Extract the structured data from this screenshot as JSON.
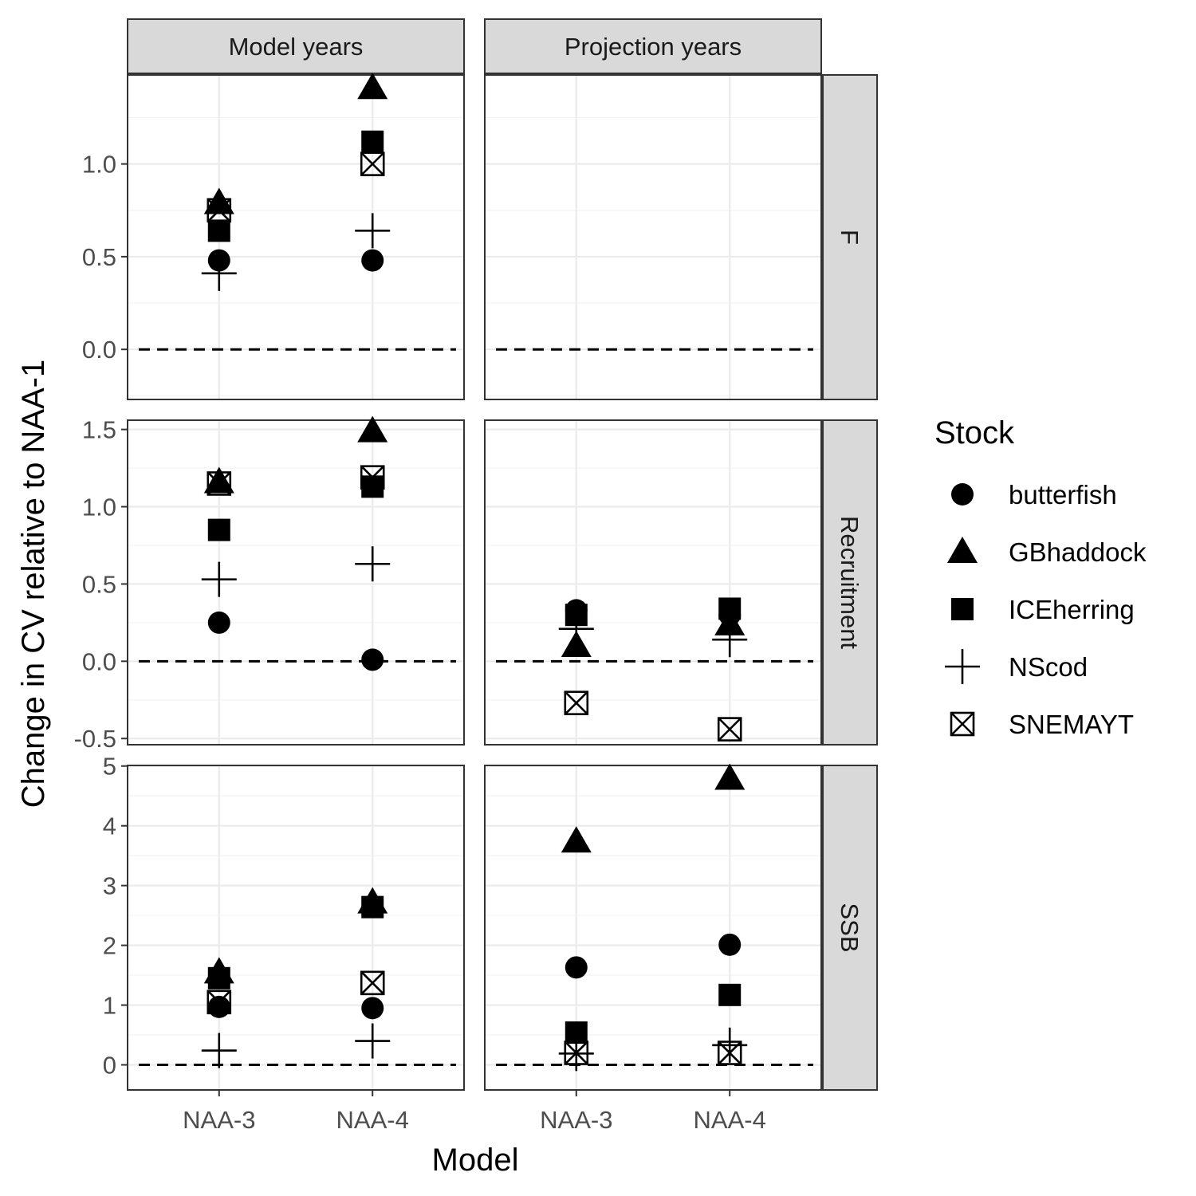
{
  "chart_data": {
    "type": "scatter",
    "facet_columns": [
      "Model years",
      "Projection years"
    ],
    "facet_rows": [
      "F",
      "Recruitment",
      "SSB"
    ],
    "xlabel": "Model",
    "ylabel": "Change in CV relative to NAA-1",
    "categories": [
      "NAA-3",
      "NAA-4"
    ],
    "reference_line": {
      "y": 0,
      "style": "dashed"
    },
    "grid": true,
    "legend": {
      "title": "Stock",
      "position": "right",
      "entries": [
        {
          "name": "butterfish",
          "shape": "circle"
        },
        {
          "name": "GBhaddock",
          "shape": "triangle"
        },
        {
          "name": "ICEherring",
          "shape": "square"
        },
        {
          "name": "NScod",
          "shape": "plus"
        },
        {
          "name": "SNEMAYT",
          "shape": "boxed-x"
        }
      ]
    },
    "rows": [
      {
        "name": "F",
        "ylim": [
          -0.27,
          1.48
        ],
        "yticks": [
          0.0,
          0.5,
          1.0
        ],
        "ytick_labels": [
          "0.0",
          "0.5",
          "1.0"
        ],
        "panels": [
          {
            "column": "Model years",
            "points": [
              {
                "x": "NAA-3",
                "series": "butterfish",
                "y": 0.48
              },
              {
                "x": "NAA-3",
                "series": "GBhaddock",
                "y": 0.79
              },
              {
                "x": "NAA-3",
                "series": "ICEherring",
                "y": 0.64
              },
              {
                "x": "NAA-3",
                "series": "NScod",
                "y": 0.41
              },
              {
                "x": "NAA-3",
                "series": "SNEMAYT",
                "y": 0.75
              },
              {
                "x": "NAA-4",
                "series": "butterfish",
                "y": 0.48
              },
              {
                "x": "NAA-4",
                "series": "GBhaddock",
                "y": 1.41
              },
              {
                "x": "NAA-4",
                "series": "ICEherring",
                "y": 1.12
              },
              {
                "x": "NAA-4",
                "series": "NScod",
                "y": 0.64
              },
              {
                "x": "NAA-4",
                "series": "SNEMAYT",
                "y": 1.0
              }
            ]
          },
          {
            "column": "Projection years",
            "points": []
          }
        ]
      },
      {
        "name": "Recruitment",
        "ylim": [
          -0.54,
          1.56
        ],
        "yticks": [
          -0.5,
          0.0,
          0.5,
          1.0,
          1.5
        ],
        "ytick_labels": [
          "-0.5",
          "0.0",
          "0.5",
          "1.0",
          "1.5"
        ],
        "panels": [
          {
            "column": "Model years",
            "points": [
              {
                "x": "NAA-3",
                "series": "butterfish",
                "y": 0.25
              },
              {
                "x": "NAA-3",
                "series": "GBhaddock",
                "y": 1.16
              },
              {
                "x": "NAA-3",
                "series": "ICEherring",
                "y": 0.85
              },
              {
                "x": "NAA-3",
                "series": "NScod",
                "y": 0.53
              },
              {
                "x": "NAA-3",
                "series": "SNEMAYT",
                "y": 1.15
              },
              {
                "x": "NAA-4",
                "series": "butterfish",
                "y": 0.01
              },
              {
                "x": "NAA-4",
                "series": "GBhaddock",
                "y": 1.49
              },
              {
                "x": "NAA-4",
                "series": "ICEherring",
                "y": 1.13
              },
              {
                "x": "NAA-4",
                "series": "NScod",
                "y": 0.63
              },
              {
                "x": "NAA-4",
                "series": "SNEMAYT",
                "y": 1.19
              }
            ]
          },
          {
            "column": "Projection years",
            "points": [
              {
                "x": "NAA-3",
                "series": "butterfish",
                "y": 0.33
              },
              {
                "x": "NAA-3",
                "series": "GBhaddock",
                "y": 0.1
              },
              {
                "x": "NAA-3",
                "series": "ICEherring",
                "y": 0.3
              },
              {
                "x": "NAA-3",
                "series": "NScod",
                "y": 0.21
              },
              {
                "x": "NAA-3",
                "series": "SNEMAYT",
                "y": -0.27
              },
              {
                "x": "NAA-4",
                "series": "butterfish",
                "y": 0.3
              },
              {
                "x": "NAA-4",
                "series": "GBhaddock",
                "y": 0.24
              },
              {
                "x": "NAA-4",
                "series": "ICEherring",
                "y": 0.34
              },
              {
                "x": "NAA-4",
                "series": "NScod",
                "y": 0.14
              },
              {
                "x": "NAA-4",
                "series": "SNEMAYT",
                "y": -0.44
              }
            ]
          }
        ]
      },
      {
        "name": "SSB",
        "ylim": [
          -0.42,
          5.01
        ],
        "yticks": [
          0,
          1,
          2,
          3,
          4,
          5
        ],
        "ytick_labels": [
          "0",
          "1",
          "2",
          "3",
          "4",
          "5"
        ],
        "panels": [
          {
            "column": "Model years",
            "points": [
              {
                "x": "NAA-3",
                "series": "butterfish",
                "y": 0.97
              },
              {
                "x": "NAA-3",
                "series": "GBhaddock",
                "y": 1.55
              },
              {
                "x": "NAA-3",
                "series": "ICEherring",
                "y": 1.45
              },
              {
                "x": "NAA-3",
                "series": "NScod",
                "y": 0.24
              },
              {
                "x": "NAA-3",
                "series": "SNEMAYT",
                "y": 1.05
              },
              {
                "x": "NAA-4",
                "series": "butterfish",
                "y": 0.95
              },
              {
                "x": "NAA-4",
                "series": "GBhaddock",
                "y": 2.72
              },
              {
                "x": "NAA-4",
                "series": "ICEherring",
                "y": 2.64
              },
              {
                "x": "NAA-4",
                "series": "NScod",
                "y": 0.4
              },
              {
                "x": "NAA-4",
                "series": "SNEMAYT",
                "y": 1.37
              }
            ]
          },
          {
            "column": "Projection years",
            "points": [
              {
                "x": "NAA-3",
                "series": "butterfish",
                "y": 1.63
              },
              {
                "x": "NAA-3",
                "series": "GBhaddock",
                "y": 3.74
              },
              {
                "x": "NAA-3",
                "series": "ICEherring",
                "y": 0.54
              },
              {
                "x": "NAA-3",
                "series": "NScod",
                "y": 0.19
              },
              {
                "x": "NAA-3",
                "series": "SNEMAYT",
                "y": 0.2
              },
              {
                "x": "NAA-4",
                "series": "butterfish",
                "y": 2.01
              },
              {
                "x": "NAA-4",
                "series": "GBhaddock",
                "y": 4.79
              },
              {
                "x": "NAA-4",
                "series": "ICEherring",
                "y": 1.17
              },
              {
                "x": "NAA-4",
                "series": "NScod",
                "y": 0.33
              },
              {
                "x": "NAA-4",
                "series": "SNEMAYT",
                "y": 0.2
              }
            ]
          }
        ]
      }
    ]
  }
}
